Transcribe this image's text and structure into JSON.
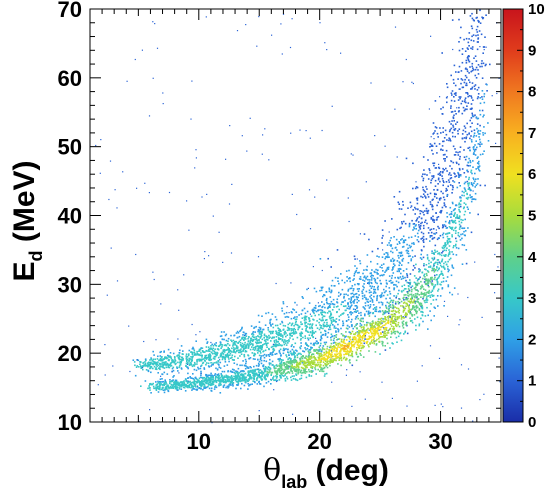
{
  "chart_data": {
    "type": "heatmap",
    "xlabel": {
      "symbol": "θ",
      "sub": "lab",
      "unit": " (deg)"
    },
    "ylabel": {
      "main": "E",
      "sub": "d",
      "unit": " (MeV)"
    },
    "xlim": [
      1,
      35
    ],
    "ylim": [
      10,
      70
    ],
    "x_ticks": [
      10,
      20,
      30
    ],
    "y_ticks": [
      10,
      20,
      30,
      40,
      50,
      60,
      70
    ],
    "colorbar": {
      "range": [
        0,
        10
      ],
      "ticks": [
        0,
        1,
        2,
        3,
        4,
        5,
        6,
        7,
        8,
        9,
        10
      ],
      "colors": [
        "#1a2da8",
        "#2a63d6",
        "#2fa0e6",
        "#37c8c8",
        "#5fd08a",
        "#a8dc3c",
        "#f0e020",
        "#f8b020",
        "#f07820",
        "#e03c1c",
        "#c8141c"
      ]
    },
    "bands": [
      {
        "name": "upper",
        "centerline": [
          [
            5,
            18.2
          ],
          [
            10,
            19.5
          ],
          [
            15,
            21.5
          ],
          [
            20,
            24.5
          ],
          [
            25,
            30
          ],
          [
            28,
            37
          ],
          [
            30,
            45
          ],
          [
            32,
            57
          ],
          [
            33.5,
            70
          ]
        ],
        "half_width_y": [
          [
            5,
            0.8
          ],
          [
            15,
            2.0
          ],
          [
            25,
            5
          ],
          [
            30,
            8
          ],
          [
            33.5,
            10
          ]
        ],
        "counts": [
          [
            5,
            3
          ],
          [
            15,
            3
          ],
          [
            25,
            2
          ],
          [
            30,
            1
          ],
          [
            33.5,
            1
          ]
        ]
      },
      {
        "name": "lower",
        "centerline": [
          [
            6,
            15.2
          ],
          [
            10,
            15.8
          ],
          [
            15,
            17
          ],
          [
            20,
            19.2
          ],
          [
            25,
            23.5
          ],
          [
            28,
            28
          ],
          [
            30,
            33
          ],
          [
            32,
            42
          ],
          [
            33.5,
            55
          ]
        ],
        "half_width_y": [
          [
            6,
            0.6
          ],
          [
            15,
            1.0
          ],
          [
            25,
            2
          ],
          [
            30,
            3.5
          ],
          [
            33.5,
            6
          ]
        ],
        "counts": [
          [
            6,
            3
          ],
          [
            15,
            3
          ],
          [
            22,
            6
          ],
          [
            26,
            5
          ],
          [
            30,
            3
          ],
          [
            33.5,
            2
          ]
        ]
      }
    ]
  }
}
